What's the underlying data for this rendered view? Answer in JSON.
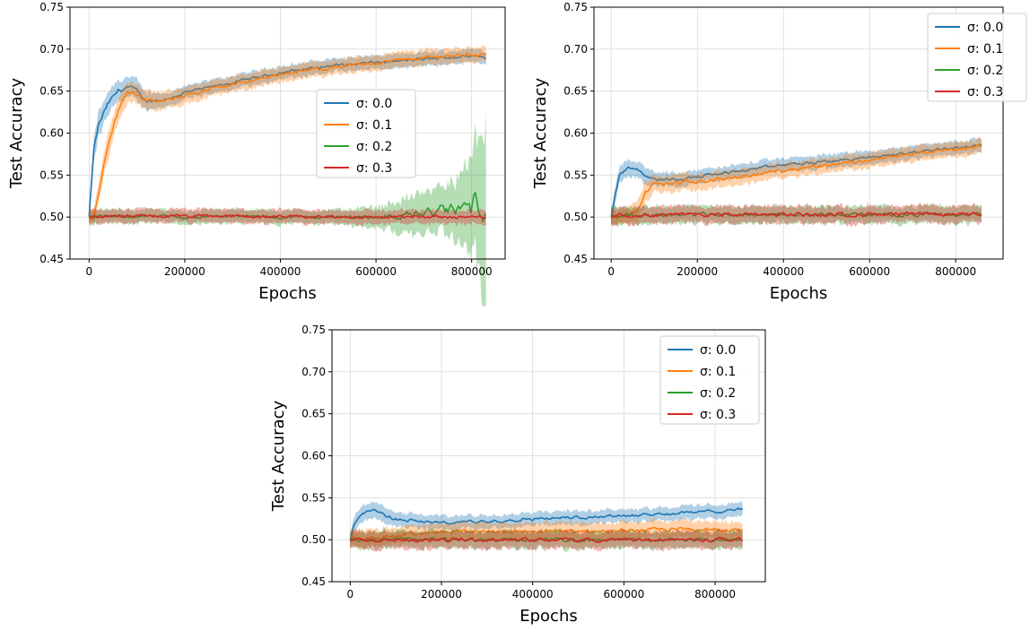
{
  "chart_data": [
    {
      "type": "line",
      "xlabel": "Epochs",
      "ylabel": "Test Accuracy",
      "xlim": [
        -40000,
        870000
      ],
      "ylim": [
        0.45,
        0.75
      ],
      "xticks": [
        0,
        200000,
        400000,
        600000,
        800000
      ],
      "xtick_labels": [
        "0",
        "200000",
        "400000",
        "600000",
        "800000"
      ],
      "yticks": [
        0.45,
        0.5,
        0.55,
        0.6,
        0.65,
        0.7,
        0.75
      ],
      "ytick_labels": [
        "0.45",
        "0.50",
        "0.55",
        "0.60",
        "0.65",
        "0.70",
        "0.75"
      ],
      "grid": true,
      "legend_position": "center-right",
      "series": [
        {
          "name": "σ: 0.0",
          "color": "#1f77b4",
          "x": [
            0,
            10000,
            20000,
            40000,
            60000,
            80000,
            100000,
            120000,
            160000,
            200000,
            300000,
            400000,
            500000,
            600000,
            700000,
            800000,
            830000
          ],
          "y": [
            0.5,
            0.58,
            0.61,
            0.635,
            0.65,
            0.655,
            0.65,
            0.638,
            0.64,
            0.648,
            0.66,
            0.672,
            0.68,
            0.684,
            0.688,
            0.692,
            0.69
          ],
          "band": [
            0.01,
            0.015,
            0.015,
            0.013,
            0.013,
            0.012,
            0.012,
            0.01,
            0.008,
            0.008,
            0.008,
            0.008,
            0.008,
            0.008,
            0.008,
            0.008,
            0.008
          ]
        },
        {
          "name": "σ: 0.1",
          "color": "#ff7f0e",
          "x": [
            0,
            10000,
            20000,
            40000,
            60000,
            80000,
            100000,
            120000,
            160000,
            200000,
            300000,
            400000,
            500000,
            600000,
            700000,
            800000,
            830000
          ],
          "y": [
            0.5,
            0.5,
            0.53,
            0.59,
            0.625,
            0.65,
            0.648,
            0.638,
            0.638,
            0.645,
            0.658,
            0.67,
            0.678,
            0.684,
            0.69,
            0.694,
            0.693
          ],
          "band": [
            0.008,
            0.01,
            0.012,
            0.015,
            0.014,
            0.012,
            0.012,
            0.011,
            0.01,
            0.01,
            0.009,
            0.009,
            0.009,
            0.009,
            0.009,
            0.009,
            0.009
          ]
        },
        {
          "name": "σ: 0.2",
          "color": "#2ca02c",
          "x": [
            0,
            100000,
            200000,
            300000,
            400000,
            500000,
            600000,
            650000,
            700000,
            750000,
            780000,
            800000,
            820000,
            830000
          ],
          "y": [
            0.5,
            0.501,
            0.5,
            0.501,
            0.5,
            0.5,
            0.5,
            0.502,
            0.504,
            0.508,
            0.51,
            0.512,
            0.52,
            0.526
          ],
          "band": [
            0.008,
            0.008,
            0.008,
            0.008,
            0.008,
            0.008,
            0.012,
            0.018,
            0.025,
            0.03,
            0.04,
            0.06,
            0.08,
            0.1
          ]
        },
        {
          "name": "σ: 0.3",
          "color": "#d62728",
          "x": [
            0,
            100000,
            200000,
            300000,
            400000,
            500000,
            600000,
            700000,
            800000,
            830000
          ],
          "y": [
            0.5,
            0.501,
            0.501,
            0.501,
            0.5,
            0.5,
            0.5,
            0.5,
            0.5,
            0.5
          ],
          "band": [
            0.008,
            0.008,
            0.008,
            0.008,
            0.008,
            0.008,
            0.008,
            0.008,
            0.008,
            0.008
          ]
        }
      ]
    },
    {
      "type": "line",
      "xlabel": "Epochs",
      "ylabel": "Test Accuracy",
      "xlim": [
        -40000,
        910000
      ],
      "ylim": [
        0.45,
        0.75
      ],
      "xticks": [
        0,
        200000,
        400000,
        600000,
        800000
      ],
      "xtick_labels": [
        "0",
        "200000",
        "400000",
        "600000",
        "800000"
      ],
      "yticks": [
        0.45,
        0.5,
        0.55,
        0.6,
        0.65,
        0.7,
        0.75
      ],
      "ytick_labels": [
        "0.45",
        "0.50",
        "0.55",
        "0.60",
        "0.65",
        "0.70",
        "0.75"
      ],
      "grid": true,
      "legend_position": "top-right",
      "series": [
        {
          "name": "σ: 0.0",
          "color": "#1f77b4",
          "x": [
            0,
            10000,
            20000,
            40000,
            60000,
            80000,
            100000,
            150000,
            200000,
            300000,
            400000,
            500000,
            600000,
            700000,
            800000,
            860000
          ],
          "y": [
            0.5,
            0.53,
            0.55,
            0.56,
            0.558,
            0.55,
            0.545,
            0.545,
            0.548,
            0.555,
            0.562,
            0.566,
            0.571,
            0.577,
            0.583,
            0.585
          ],
          "band": [
            0.008,
            0.01,
            0.01,
            0.01,
            0.01,
            0.01,
            0.008,
            0.008,
            0.008,
            0.008,
            0.008,
            0.008,
            0.008,
            0.008,
            0.008,
            0.008
          ]
        },
        {
          "name": "σ: 0.1",
          "color": "#ff7f0e",
          "x": [
            0,
            20000,
            40000,
            60000,
            80000,
            100000,
            150000,
            200000,
            300000,
            400000,
            500000,
            600000,
            700000,
            800000,
            860000
          ],
          "y": [
            0.5,
            0.5,
            0.502,
            0.505,
            0.53,
            0.54,
            0.54,
            0.542,
            0.548,
            0.556,
            0.562,
            0.568,
            0.575,
            0.58,
            0.585
          ],
          "band": [
            0.008,
            0.008,
            0.01,
            0.012,
            0.012,
            0.01,
            0.01,
            0.01,
            0.009,
            0.009,
            0.009,
            0.009,
            0.009,
            0.009,
            0.009
          ]
        },
        {
          "name": "σ: 0.2",
          "color": "#2ca02c",
          "x": [
            0,
            100000,
            200000,
            300000,
            400000,
            500000,
            600000,
            700000,
            800000,
            860000
          ],
          "y": [
            0.502,
            0.503,
            0.503,
            0.503,
            0.503,
            0.503,
            0.503,
            0.503,
            0.503,
            0.504
          ],
          "band": [
            0.01,
            0.01,
            0.01,
            0.01,
            0.01,
            0.01,
            0.01,
            0.01,
            0.01,
            0.01
          ]
        },
        {
          "name": "σ: 0.3",
          "color": "#d62728",
          "x": [
            0,
            100000,
            200000,
            300000,
            400000,
            500000,
            600000,
            700000,
            800000,
            860000
          ],
          "y": [
            0.502,
            0.503,
            0.503,
            0.503,
            0.503,
            0.503,
            0.503,
            0.503,
            0.503,
            0.504
          ],
          "band": [
            0.01,
            0.01,
            0.01,
            0.01,
            0.01,
            0.01,
            0.01,
            0.01,
            0.01,
            0.01
          ]
        }
      ]
    },
    {
      "type": "line",
      "xlabel": "Epochs",
      "ylabel": "Test Accuracy",
      "xlim": [
        -40000,
        910000
      ],
      "ylim": [
        0.45,
        0.75
      ],
      "xticks": [
        0,
        200000,
        400000,
        600000,
        800000
      ],
      "xtick_labels": [
        "0",
        "200000",
        "400000",
        "600000",
        "800000"
      ],
      "yticks": [
        0.45,
        0.5,
        0.55,
        0.6,
        0.65,
        0.7,
        0.75
      ],
      "ytick_labels": [
        "0.45",
        "0.50",
        "0.55",
        "0.60",
        "0.65",
        "0.70",
        "0.75"
      ],
      "grid": true,
      "legend_position": "top-right",
      "series": [
        {
          "name": "σ: 0.0",
          "color": "#1f77b4",
          "x": [
            0,
            10000,
            20000,
            40000,
            60000,
            80000,
            100000,
            150000,
            200000,
            300000,
            400000,
            500000,
            600000,
            700000,
            800000,
            860000
          ],
          "y": [
            0.5,
            0.52,
            0.53,
            0.535,
            0.533,
            0.528,
            0.525,
            0.522,
            0.52,
            0.522,
            0.525,
            0.527,
            0.529,
            0.531,
            0.534,
            0.537
          ],
          "band": [
            0.008,
            0.01,
            0.01,
            0.01,
            0.01,
            0.009,
            0.008,
            0.008,
            0.008,
            0.008,
            0.008,
            0.008,
            0.008,
            0.008,
            0.008,
            0.008
          ]
        },
        {
          "name": "σ: 0.1",
          "color": "#ff7f0e",
          "x": [
            0,
            50000,
            100000,
            150000,
            200000,
            300000,
            400000,
            500000,
            600000,
            700000,
            800000,
            860000
          ],
          "y": [
            0.5,
            0.502,
            0.505,
            0.508,
            0.51,
            0.51,
            0.51,
            0.51,
            0.511,
            0.512,
            0.512,
            0.512
          ],
          "band": [
            0.01,
            0.01,
            0.01,
            0.01,
            0.01,
            0.01,
            0.01,
            0.01,
            0.01,
            0.01,
            0.01,
            0.01
          ]
        },
        {
          "name": "σ: 0.2",
          "color": "#2ca02c",
          "x": [
            0,
            100000,
            200000,
            300000,
            400000,
            500000,
            600000,
            700000,
            800000,
            860000
          ],
          "y": [
            0.5,
            0.5,
            0.5,
            0.5,
            0.5,
            0.5,
            0.5,
            0.5,
            0.5,
            0.5
          ],
          "band": [
            0.01,
            0.01,
            0.01,
            0.01,
            0.01,
            0.01,
            0.01,
            0.01,
            0.01,
            0.01
          ]
        },
        {
          "name": "σ: 0.3",
          "color": "#d62728",
          "x": [
            0,
            100000,
            200000,
            300000,
            400000,
            500000,
            600000,
            700000,
            800000,
            860000
          ],
          "y": [
            0.5,
            0.5,
            0.5,
            0.5,
            0.5,
            0.5,
            0.5,
            0.5,
            0.5,
            0.5
          ],
          "band": [
            0.01,
            0.01,
            0.01,
            0.01,
            0.01,
            0.01,
            0.01,
            0.01,
            0.01,
            0.01
          ]
        }
      ]
    }
  ]
}
